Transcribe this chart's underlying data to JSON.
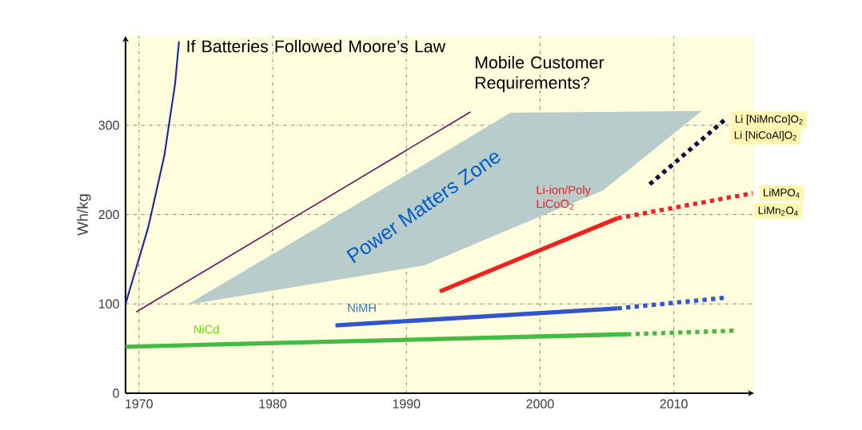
{
  "chart_data": {
    "type": "line",
    "ylabel": "Wh/kg",
    "xlim": [
      1969,
      2016
    ],
    "ylim": [
      0,
      400
    ],
    "xticks": [
      1970,
      1980,
      1990,
      2000,
      2010
    ],
    "yticks": [
      0,
      100,
      200,
      300
    ],
    "grid": true,
    "series": [
      {
        "name": "If Batteries Followed Moore’s Law",
        "color": "#1a2a9a",
        "line_style": "solid",
        "x": [
          1969,
          1970.7,
          1971.9,
          1972.7,
          1973
        ],
        "values": [
          100,
          186,
          266,
          346,
          394
        ]
      },
      {
        "name": "Mobile Customer Requirements?",
        "color": "#6a1a5a",
        "line_style": "solid",
        "x": [
          1969.8,
          1994.8
        ],
        "values": [
          91,
          315
        ]
      },
      {
        "name": "Power Matters Zone",
        "type": "area",
        "x": [
          1973.6,
          1991.3,
          1997.8,
          2004.7,
          2012.1
        ],
        "values": [
          null,
          null,
          null,
          null,
          null
        ],
        "upper": [
          99,
          256,
          314,
          315,
          316
        ],
        "lower": [
          99,
          143,
          184,
          227,
          316
        ]
      },
      {
        "name": "NiCd",
        "color": "#44bb44",
        "line_style": "solid",
        "x": [
          1969,
          2006.5
        ],
        "values": [
          52,
          66
        ]
      },
      {
        "color": "#44bb44",
        "line_style": "dotted",
        "x": [
          2006.5,
          2014.5
        ],
        "values": [
          66,
          70
        ]
      },
      {
        "name": "NiMH",
        "color": "#3355cc",
        "line_style": "solid",
        "x": [
          1984.7,
          2005.8
        ],
        "values": [
          76,
          95
        ]
      },
      {
        "color": "#3355cc",
        "line_style": "dotted",
        "x": [
          2005.8,
          2013.9
        ],
        "values": [
          95,
          107
        ]
      },
      {
        "name": "Li-ion/Poly LiCoO$_{2}$",
        "color": "#ee2222",
        "line_style": "solid",
        "x": [
          1992.5,
          2005.8
        ],
        "values": [
          114,
          196
        ]
      },
      {
        "name": "LiMPO$_{4}$",
        "color": "#ee2222",
        "line_style": "dotted",
        "x": [
          2005.8,
          2015.9
        ],
        "values": [
          196,
          224
        ]
      },
      {
        "name": "Li [NiMnCo]O$_{2}$",
        "color": "#0a1040",
        "line_style": "dotted",
        "x": [
          2008.2,
          2013.8
        ],
        "values": [
          234,
          306
        ]
      }
    ],
    "annotations": [
      "Li [NiCoAl]O$_{2}$",
      "LiMn$_{2}$O$_{4}$"
    ]
  }
}
